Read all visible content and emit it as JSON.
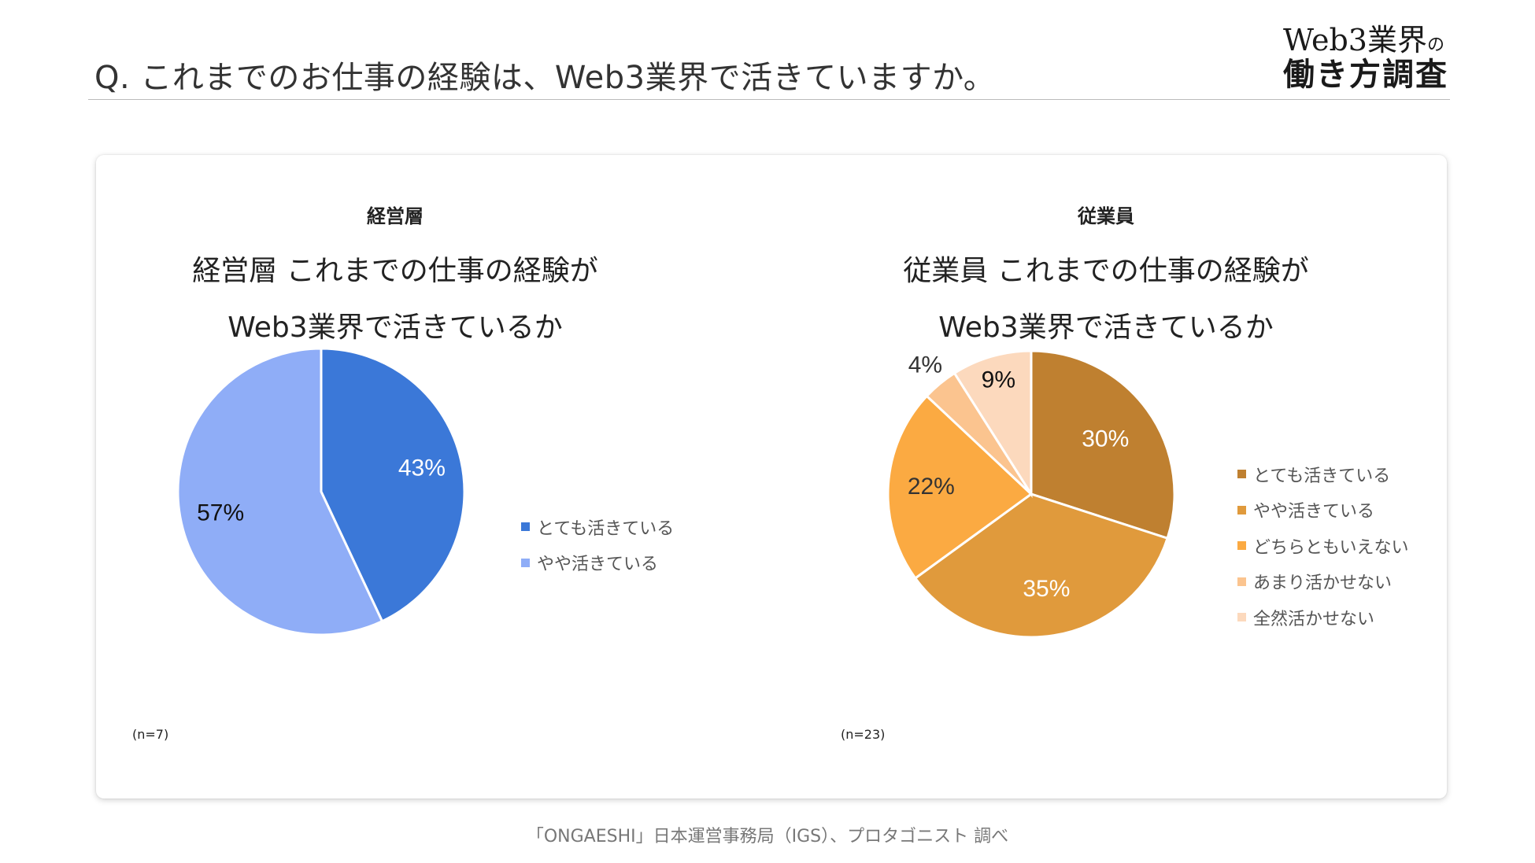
{
  "header": {
    "question": "Q. これまでのお仕事の経験は、Web3業界で活きていますか。",
    "brand_line1_main": "Web3業界",
    "brand_line1_small": "の",
    "brand_line2": "働き方調査"
  },
  "footer": {
    "source": "「ONGAESHI」日本運営事務局（IGS）、プロタゴニスト 調べ"
  },
  "left": {
    "label": "経営層",
    "note": "(n=7)"
  },
  "right": {
    "label": "従業員",
    "note": "(n=23)"
  },
  "chart_data": [
    {
      "type": "pie",
      "title_line1": "経営層 これまでの仕事の経験が",
      "title_line2": "Web3業界で活きているか",
      "categories": [
        "とても活きている",
        "やや活きている"
      ],
      "values": [
        43,
        57
      ],
      "labels": [
        "43%",
        "57%"
      ],
      "colors": [
        "#3b78d8",
        "#8fadf7"
      ],
      "label_colors": [
        "#ffffff",
        "#111111"
      ],
      "legend_position": "right"
    },
    {
      "type": "pie",
      "title_line1": "従業員 これまでの仕事の経験が",
      "title_line2": "Web3業界で活きているか",
      "categories": [
        "とても活きている",
        "やや活きている",
        "どちらともいえない",
        "あまり活かせない",
        "全然活かせない"
      ],
      "values": [
        30,
        35,
        22,
        4,
        9
      ],
      "labels": [
        "30%",
        "35%",
        "22%",
        "4%",
        "9%"
      ],
      "colors": [
        "#bf8030",
        "#e09a3c",
        "#fbaa42",
        "#fbc48f",
        "#fcd9bd"
      ],
      "label_colors": [
        "#ffffff",
        "#ffffff",
        "#333333",
        "#333333",
        "#111111"
      ],
      "legend_position": "right"
    }
  ]
}
